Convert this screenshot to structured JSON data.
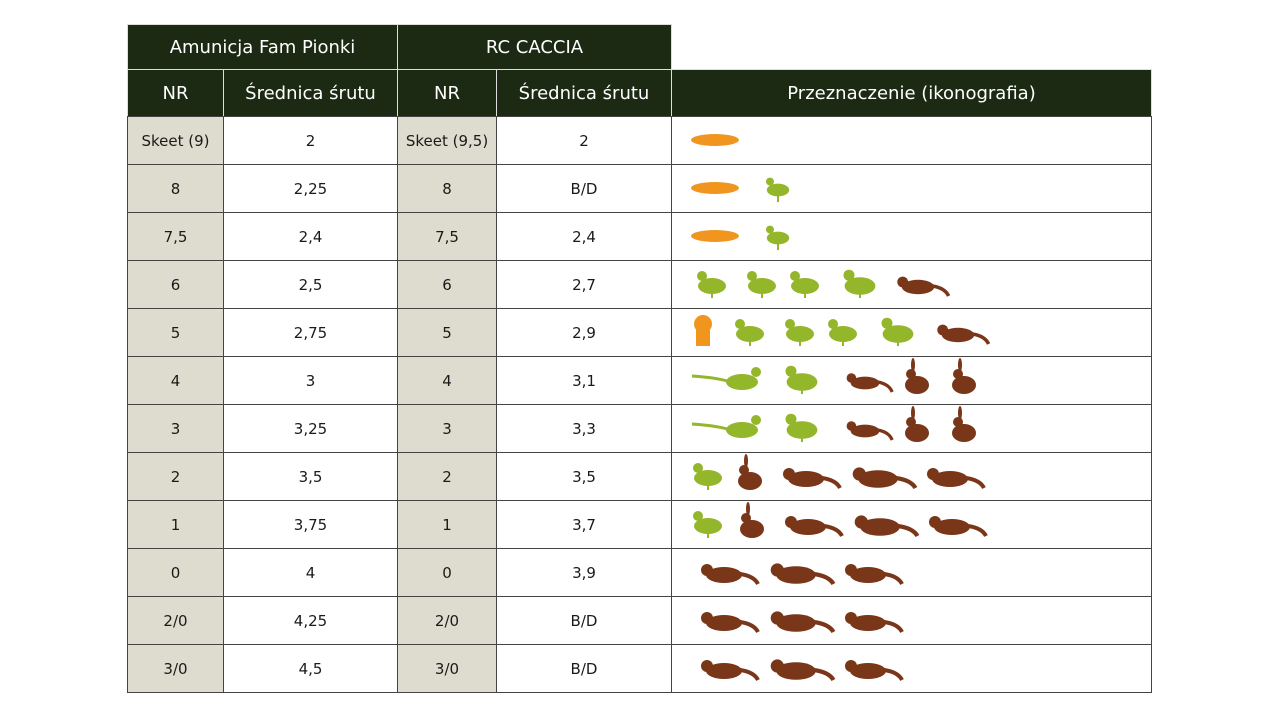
{
  "header": {
    "groups": [
      "Amunicja Fam Pionki",
      "RC CACCIA"
    ],
    "columns": [
      "NR",
      "Średnica śrutu",
      "NR",
      "Średnica śrutu",
      "Przeznaczenie (ikonografia)"
    ]
  },
  "table": {
    "rows": [
      [
        "Skeet (9)",
        "2",
        "Skeet (9,5)",
        "2"
      ],
      [
        "8",
        "2,25",
        "8",
        "B/D"
      ],
      [
        "7,5",
        "2,4",
        "7,5",
        "2,4"
      ],
      [
        "6",
        "2,5",
        "6",
        "2,7"
      ],
      [
        "5",
        "2,75",
        "5",
        "2,9"
      ],
      [
        "4",
        "3",
        "4",
        "3,1"
      ],
      [
        "3",
        "3,25",
        "3",
        "3,3"
      ],
      [
        "2",
        "3,5",
        "2",
        "3,5"
      ],
      [
        "1",
        "3,75",
        "1",
        "3,7"
      ],
      [
        "0",
        "4",
        "0",
        "3,9"
      ],
      [
        "2/0",
        "4,25",
        "2/0",
        "B/D"
      ],
      [
        "3/0",
        "4,5",
        "3/0",
        "B/D"
      ]
    ]
  }
}
